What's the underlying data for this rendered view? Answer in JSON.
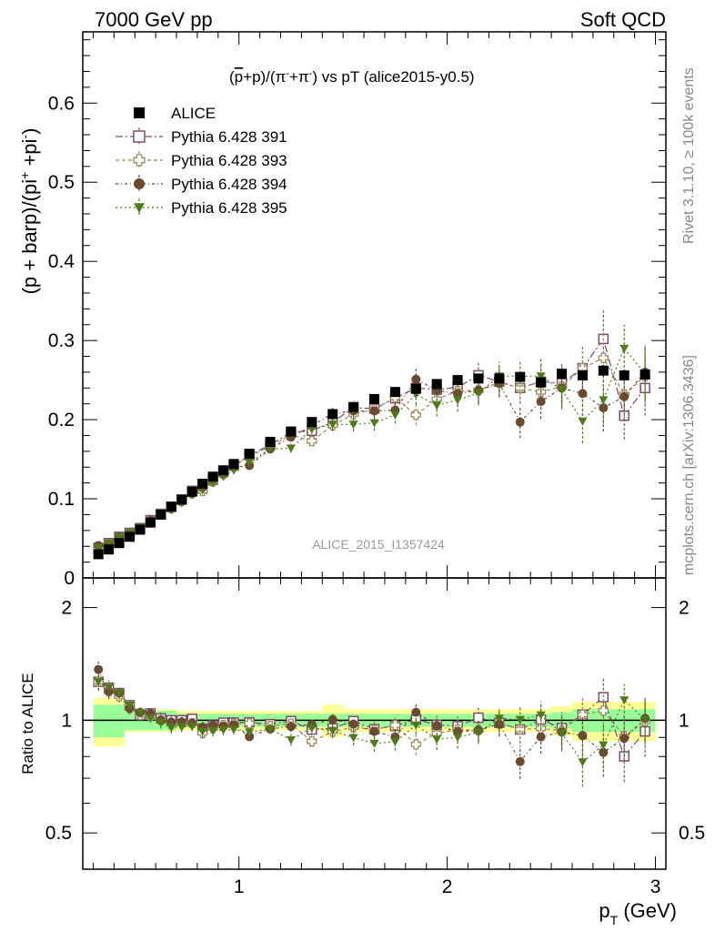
{
  "header": {
    "left": "7000 GeV pp",
    "right": "Soft QCD"
  },
  "side_labels": {
    "rivet": "Rivet 3.1.10, ≥ 100k events",
    "mcplots": "mcplots.cern.ch [arXiv:1306.3436]"
  },
  "chart_data": {
    "type": "scatter",
    "title": "(p̅+p)/(π⁻+π⁺) vs pT (alice2015-y0.5)",
    "title_parts": {
      "open": "(",
      "pbar": "p",
      "plus_p": "+p)/(π",
      "sup1": "-",
      "plus_pi": "+π",
      "sup2": "-",
      "tail": ") vs pT (alice2015-y0.5)"
    },
    "watermark": "ALICE_2015_I1357424",
    "ylabel_parts": {
      "main": "(p + barp)/(pi",
      "sup": "+",
      "mid": " +pi",
      "sup2": "-",
      "end": ")"
    },
    "xlabel_parts": {
      "main": "p",
      "sub": "T",
      "unit": " (GeV)"
    },
    "ratio_ylabel": "Ratio to ALICE",
    "xlim": [
      0.25,
      3.05
    ],
    "ylim": [
      0,
      0.69
    ],
    "ratio_ylim": [
      0.4,
      2.4
    ],
    "x_ticks": [
      "1",
      "2",
      "3"
    ],
    "y_ticks": [
      "0",
      "0.1",
      "0.2",
      "0.3",
      "0.4",
      "0.5",
      "0.6"
    ],
    "ratio_ticks": [
      "0.5",
      "1",
      "2"
    ],
    "legend_position": "top-left",
    "x": [
      0.325,
      0.375,
      0.425,
      0.475,
      0.525,
      0.575,
      0.625,
      0.675,
      0.725,
      0.775,
      0.825,
      0.875,
      0.925,
      0.975,
      1.05,
      1.15,
      1.25,
      1.35,
      1.45,
      1.55,
      1.65,
      1.75,
      1.85,
      1.95,
      2.05,
      2.15,
      2.25,
      2.35,
      2.45,
      2.55,
      2.65,
      2.75,
      2.85,
      2.95
    ],
    "data_series": {
      "name": "ALICE",
      "values": [
        0.03,
        0.036,
        0.044,
        0.052,
        0.061,
        0.07,
        0.08,
        0.09,
        0.099,
        0.109,
        0.119,
        0.128,
        0.136,
        0.144,
        0.157,
        0.172,
        0.185,
        0.197,
        0.207,
        0.216,
        0.226,
        0.235,
        0.239,
        0.245,
        0.25,
        0.252,
        0.252,
        0.254,
        0.247,
        0.258,
        0.256,
        0.262,
        0.256,
        0.257
      ],
      "errors": [
        0.002,
        0.002,
        0.002,
        0.002,
        0.002,
        0.002,
        0.002,
        0.002,
        0.002,
        0.002,
        0.003,
        0.003,
        0.003,
        0.003,
        0.003,
        0.004,
        0.004,
        0.004,
        0.004,
        0.005,
        0.005,
        0.005,
        0.006,
        0.006,
        0.006,
        0.006,
        0.006,
        0.006,
        0.006,
        0.007,
        0.007,
        0.007,
        0.007,
        0.007
      ]
    },
    "series": [
      {
        "name": "Pythia 6.428 391",
        "color": "#7b4d6a",
        "marker": "open-square",
        "values": [
          0.038,
          0.044,
          0.052,
          0.057,
          0.063,
          0.073,
          0.081,
          0.09,
          0.099,
          0.11,
          0.113,
          0.124,
          0.134,
          0.142,
          0.155,
          0.168,
          0.184,
          0.186,
          0.197,
          0.215,
          0.214,
          0.227,
          0.24,
          0.238,
          0.241,
          0.256,
          0.248,
          0.24,
          0.248,
          0.246,
          0.265,
          0.302,
          0.205,
          0.24
        ],
        "errors": [
          0.002,
          0.002,
          0.002,
          0.002,
          0.002,
          0.002,
          0.003,
          0.003,
          0.003,
          0.003,
          0.004,
          0.004,
          0.004,
          0.004,
          0.004,
          0.005,
          0.006,
          0.006,
          0.008,
          0.009,
          0.01,
          0.011,
          0.013,
          0.014,
          0.015,
          0.016,
          0.018,
          0.02,
          0.022,
          0.025,
          0.028,
          0.036,
          0.03,
          0.035
        ]
      },
      {
        "name": "Pythia 6.428 393",
        "color": "#9a8a5c",
        "marker": "open-cross",
        "values": [
          0.038,
          0.043,
          0.051,
          0.056,
          0.063,
          0.072,
          0.08,
          0.088,
          0.097,
          0.107,
          0.11,
          0.122,
          0.132,
          0.141,
          0.154,
          0.166,
          0.181,
          0.173,
          0.193,
          0.207,
          0.213,
          0.228,
          0.206,
          0.226,
          0.236,
          0.237,
          0.247,
          0.24,
          0.235,
          0.242,
          0.265,
          0.278,
          0.232,
          0.255
        ],
        "errors": [
          0.002,
          0.002,
          0.002,
          0.002,
          0.002,
          0.002,
          0.003,
          0.003,
          0.003,
          0.003,
          0.004,
          0.004,
          0.004,
          0.004,
          0.004,
          0.005,
          0.006,
          0.006,
          0.008,
          0.009,
          0.01,
          0.011,
          0.013,
          0.014,
          0.015,
          0.016,
          0.018,
          0.02,
          0.022,
          0.025,
          0.028,
          0.03,
          0.03,
          0.035
        ]
      },
      {
        "name": "Pythia 6.428 394",
        "color": "#6b4a32",
        "marker": "filled-circle",
        "values": [
          0.041,
          0.043,
          0.052,
          0.056,
          0.064,
          0.073,
          0.08,
          0.089,
          0.098,
          0.107,
          0.114,
          0.124,
          0.131,
          0.14,
          0.142,
          0.163,
          0.178,
          0.192,
          0.208,
          0.211,
          0.211,
          0.212,
          0.251,
          0.237,
          0.233,
          0.237,
          0.246,
          0.197,
          0.223,
          0.24,
          0.233,
          0.215,
          0.229,
          0.26
        ],
        "errors": [
          0.002,
          0.002,
          0.002,
          0.002,
          0.002,
          0.002,
          0.003,
          0.003,
          0.003,
          0.003,
          0.004,
          0.004,
          0.004,
          0.004,
          0.004,
          0.005,
          0.006,
          0.006,
          0.008,
          0.009,
          0.01,
          0.011,
          0.013,
          0.014,
          0.015,
          0.016,
          0.018,
          0.02,
          0.022,
          0.025,
          0.028,
          0.03,
          0.03,
          0.035
        ]
      },
      {
        "name": "Pythia 6.428 395",
        "color": "#4e7a1a",
        "marker": "filled-triangle-down",
        "values": [
          0.038,
          0.044,
          0.052,
          0.057,
          0.064,
          0.071,
          0.079,
          0.086,
          0.095,
          0.105,
          0.111,
          0.12,
          0.128,
          0.136,
          0.146,
          0.163,
          0.164,
          0.188,
          0.194,
          0.194,
          0.196,
          0.206,
          0.232,
          0.218,
          0.225,
          0.234,
          0.255,
          0.255,
          0.255,
          0.238,
          0.198,
          0.225,
          0.29,
          0.258
        ],
        "errors": [
          0.002,
          0.002,
          0.002,
          0.002,
          0.002,
          0.002,
          0.003,
          0.003,
          0.003,
          0.003,
          0.004,
          0.004,
          0.004,
          0.004,
          0.004,
          0.005,
          0.006,
          0.006,
          0.008,
          0.009,
          0.01,
          0.011,
          0.013,
          0.014,
          0.015,
          0.016,
          0.018,
          0.02,
          0.022,
          0.025,
          0.028,
          0.03,
          0.03,
          0.035
        ]
      }
    ],
    "ratio_bands": {
      "edges": [
        0.3,
        0.45,
        0.7,
        1.0,
        1.4,
        1.5,
        2.0,
        2.5,
        2.6,
        3.0
      ],
      "green_half": [
        0.1,
        0.06,
        0.04,
        0.04,
        0.04,
        0.04,
        0.04,
        0.05,
        0.07
      ],
      "yellow_half": [
        0.15,
        0.07,
        0.06,
        0.06,
        0.1,
        0.07,
        0.07,
        0.09,
        0.12
      ]
    }
  }
}
